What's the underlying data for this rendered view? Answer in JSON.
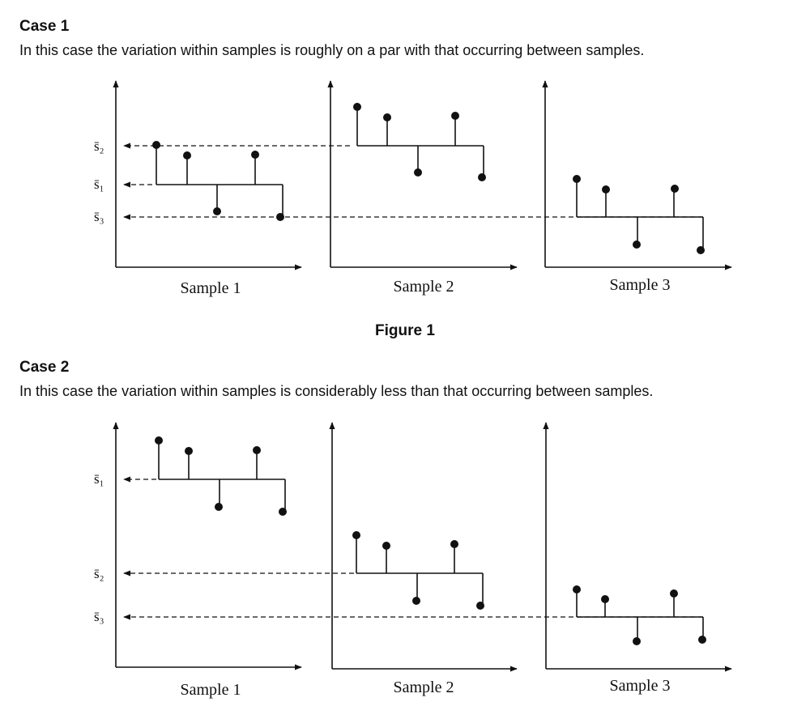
{
  "case1": {
    "heading": "Case 1",
    "description": "In this case the variation within samples is roughly on a par with that occurring between samples.",
    "figure_caption": "Figure 1",
    "mean_labels": [
      "s̄₂",
      "s̄₁",
      "s̄₃"
    ],
    "sample_labels": [
      "Sample 1",
      "Sample 2",
      "Sample 3"
    ]
  },
  "case2": {
    "heading": "Case 2",
    "description": "In this case the variation within samples is considerably less than that occurring between samples.",
    "mean_labels": [
      "s̄₁",
      "s̄₂",
      "s̄₃"
    ],
    "sample_labels": [
      "Sample 1",
      "Sample 2",
      "Sample 3"
    ]
  }
}
